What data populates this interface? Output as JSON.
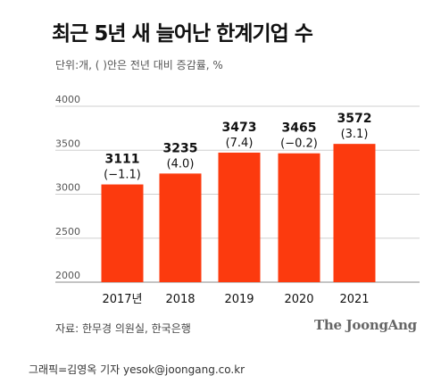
{
  "chart_data": {
    "type": "bar",
    "title": "최근 5년 새 늘어난 한계기업 수",
    "subtitle": "단위:개, ( )안은 전년 대비 증감률, %",
    "categories": [
      "2017년",
      "2018",
      "2019",
      "2020",
      "2021"
    ],
    "values": [
      3111,
      3235,
      3473,
      3465,
      3572
    ],
    "changes": [
      "(−1.1)",
      "(4.0)",
      "(7.4)",
      "(−0.2)",
      "(3.1)"
    ],
    "ylim": [
      2000,
      4000
    ],
    "yticks": [
      2000,
      2500,
      3000,
      3500,
      4000
    ],
    "grid": true,
    "bar_color": "#fc3a0e",
    "xlabel": "",
    "ylabel": ""
  },
  "footer": {
    "source": "자료: 한무경 의원실, 한국은행",
    "brand": "The JoongAng"
  },
  "credit": "그래픽=김영옥 기자 yesok@joongang.co.kr"
}
